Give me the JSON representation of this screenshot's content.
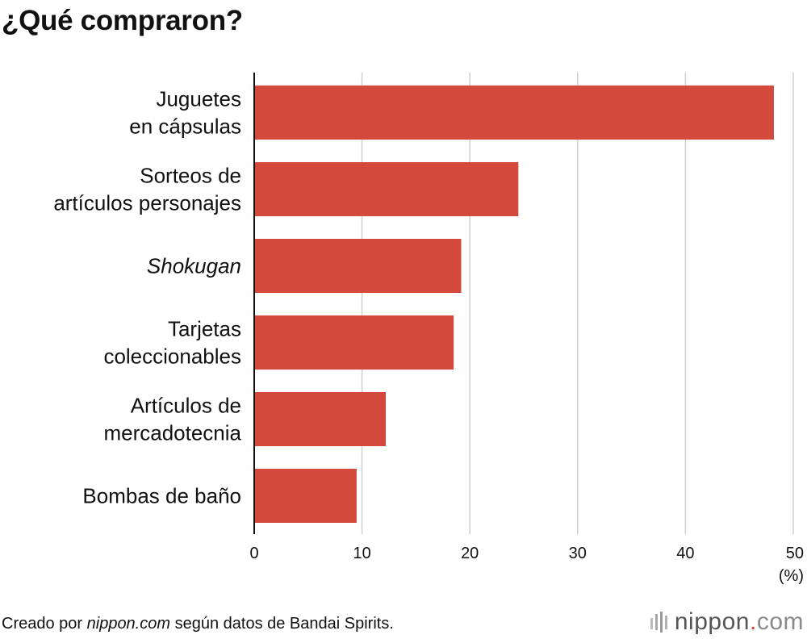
{
  "title": "¿Qué compraron?",
  "chart_data": {
    "type": "bar",
    "orientation": "horizontal",
    "title": "¿Qué compraron?",
    "categories": [
      [
        "Juguetes",
        "en cápsulas"
      ],
      [
        "Sorteos de",
        "artículos personajes"
      ],
      [
        "Shokugan"
      ],
      [
        "Tarjetas",
        "coleccionables"
      ],
      [
        "Artículos de",
        "mercadotecnia"
      ],
      [
        "Bombas de baño"
      ]
    ],
    "italic_categories": [
      2
    ],
    "values": [
      48.2,
      24.5,
      19.2,
      18.5,
      12.2,
      9.5
    ],
    "xlim": [
      0,
      50
    ],
    "xticks": [
      0,
      10,
      20,
      30,
      40,
      50
    ],
    "xtick_labels": [
      "0",
      "10",
      "20",
      "30",
      "40",
      "50"
    ],
    "unit_label": "(%)",
    "grid": true,
    "bar_color": "#d3493c",
    "grid_color": "#cfcfcf",
    "axis_color": "#111111"
  },
  "footer": {
    "source_prefix": "Creado por ",
    "source_site": "nippon.com",
    "source_suffix": " según datos de Bandai Spirits."
  },
  "brand": {
    "name": "nippon",
    "dot": ".",
    "tld": "com",
    "icon": "nippon-logo-icon"
  }
}
